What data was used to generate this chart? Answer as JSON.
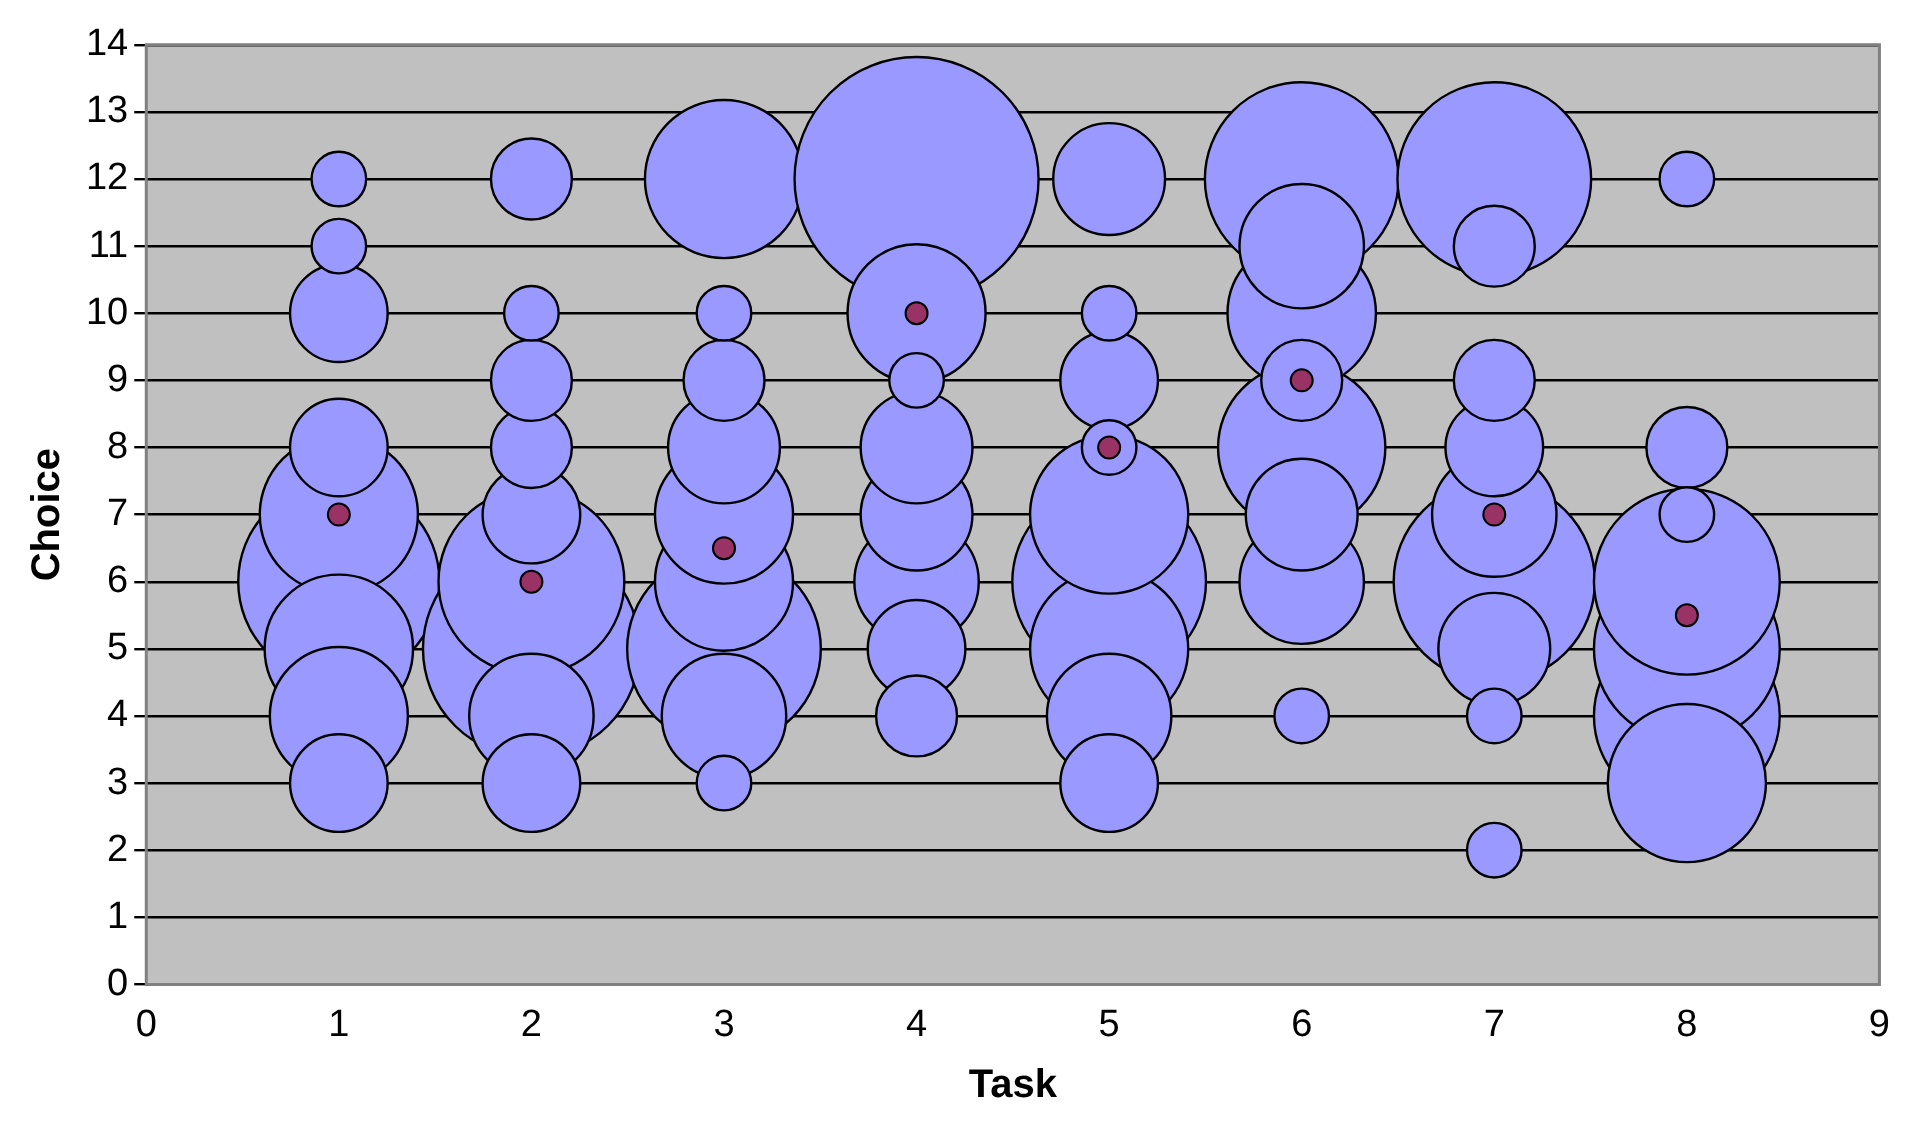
{
  "chart_data": {
    "type": "bubble",
    "xlabel": "Task",
    "ylabel": "Choice",
    "xlim": [
      0,
      9
    ],
    "xticks": [
      0,
      1,
      2,
      3,
      4,
      5,
      6,
      7,
      8,
      9
    ],
    "ylim": [
      0,
      14
    ],
    "yticks": [
      0,
      1,
      2,
      3,
      4,
      5,
      6,
      7,
      8,
      9,
      10,
      11,
      12,
      13,
      14
    ],
    "grid": "y",
    "legend": false,
    "series": [
      {
        "color": "#9999ff",
        "x": [
          1,
          1,
          1,
          1,
          1,
          1,
          1,
          1,
          1,
          2,
          2,
          2,
          2,
          2,
          2,
          2,
          2,
          2,
          3,
          3,
          3,
          3,
          3,
          3,
          3,
          3,
          3,
          4,
          4,
          4,
          4,
          4,
          4,
          4,
          4,
          5,
          5,
          5,
          5,
          5,
          5,
          5,
          5,
          5,
          6,
          6,
          6,
          6,
          6,
          6,
          6,
          6,
          7,
          7,
          7,
          7,
          7,
          7,
          7,
          7,
          7,
          8,
          8,
          8,
          8,
          8,
          8,
          8
        ],
        "values": [
          6,
          7,
          5,
          4,
          3,
          8,
          10,
          11,
          12,
          5,
          6,
          4,
          3,
          7,
          8,
          9,
          12,
          10,
          5,
          12,
          6,
          7,
          4,
          8,
          9,
          3,
          10,
          12,
          10,
          6,
          7,
          8,
          5,
          4,
          9,
          6,
          5,
          7,
          4,
          12,
          3,
          9,
          8,
          10,
          12,
          8,
          10,
          6,
          11,
          7,
          9,
          4,
          6,
          12,
          7,
          5,
          8,
          9,
          11,
          2,
          4,
          4,
          5,
          6,
          3,
          8,
          7,
          12
        ],
        "sizes": [
          0.68,
          0.42,
          0.37,
          0.32,
          0.16,
          0.16,
          0.16,
          0.05,
          0.05,
          0.79,
          0.58,
          0.26,
          0.16,
          0.16,
          0.11,
          0.11,
          0.11,
          0.05,
          0.63,
          0.42,
          0.32,
          0.32,
          0.26,
          0.21,
          0.11,
          0.05,
          0.05,
          1,
          0.32,
          0.26,
          0.21,
          0.21,
          0.16,
          0.11,
          0.05,
          0.63,
          0.42,
          0.42,
          0.26,
          0.21,
          0.16,
          0.16,
          0.05,
          0.05,
          0.63,
          0.47,
          0.37,
          0.26,
          0.26,
          0.21,
          0.11,
          0.05,
          0.68,
          0.63,
          0.26,
          0.21,
          0.16,
          0.11,
          0.11,
          0.05,
          0.05,
          0.58,
          0.58,
          0.58,
          0.42,
          0.11,
          0.05,
          0.05
        ]
      },
      {
        "type": "scatter",
        "color": "#993366",
        "marker": "circle",
        "x": [
          1,
          2,
          3,
          4,
          5,
          6,
          7,
          8
        ],
        "values": [
          7,
          6,
          6.5,
          10,
          8,
          9,
          7,
          5.5
        ]
      }
    ]
  }
}
